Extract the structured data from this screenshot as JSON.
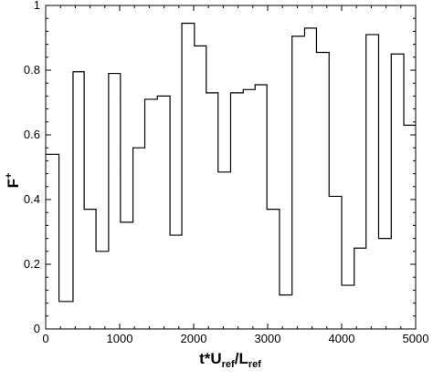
{
  "chart_data": {
    "type": "line",
    "step": true,
    "xlabel": {
      "main": "t*U",
      "sub1": "ref",
      "slash": "/L",
      "sub2": "ref"
    },
    "ylabel": {
      "main": "F",
      "sup": "+"
    },
    "xlim": [
      0,
      5000
    ],
    "ylim": [
      0,
      1
    ],
    "xticks": [
      0,
      1000,
      2000,
      3000,
      4000,
      5000
    ],
    "xtick_labels": [
      "0",
      "1000",
      "2000",
      "3000",
      "4000",
      "5000"
    ],
    "yticks": [
      0,
      0.2,
      0.4,
      0.6,
      0.8,
      1
    ],
    "ytick_labels": [
      "0",
      "0.2",
      "0.4",
      "0.6",
      "0.8",
      "1"
    ],
    "grid": false,
    "series": [
      {
        "x": [
          0,
          180,
          180,
          370,
          370,
          520,
          520,
          680,
          680,
          850,
          850,
          1010,
          1010,
          1180,
          1180,
          1340,
          1340,
          1510,
          1510,
          1680,
          1680,
          1840,
          1840,
          2010,
          2010,
          2170,
          2170,
          2330,
          2330,
          2500,
          2500,
          2670,
          2670,
          2830,
          2830,
          2990,
          2990,
          3160,
          3160,
          3330,
          3330,
          3500,
          3500,
          3660,
          3660,
          3830,
          3830,
          4000,
          4000,
          4170,
          4170,
          4330,
          4330,
          4500,
          4500,
          4670,
          4670,
          4840,
          4840,
          5000
        ],
        "y": [
          0.54,
          0.54,
          0.085,
          0.085,
          0.795,
          0.795,
          0.37,
          0.37,
          0.24,
          0.24,
          0.79,
          0.79,
          0.33,
          0.33,
          0.56,
          0.56,
          0.71,
          0.71,
          0.72,
          0.72,
          0.29,
          0.29,
          0.945,
          0.945,
          0.875,
          0.875,
          0.73,
          0.73,
          0.485,
          0.485,
          0.73,
          0.73,
          0.74,
          0.74,
          0.755,
          0.755,
          0.37,
          0.37,
          0.105,
          0.105,
          0.905,
          0.905,
          0.93,
          0.93,
          0.855,
          0.855,
          0.41,
          0.41,
          0.135,
          0.135,
          0.25,
          0.25,
          0.91,
          0.91,
          0.28,
          0.28,
          0.85,
          0.85,
          0.63,
          0.63
        ]
      }
    ]
  }
}
